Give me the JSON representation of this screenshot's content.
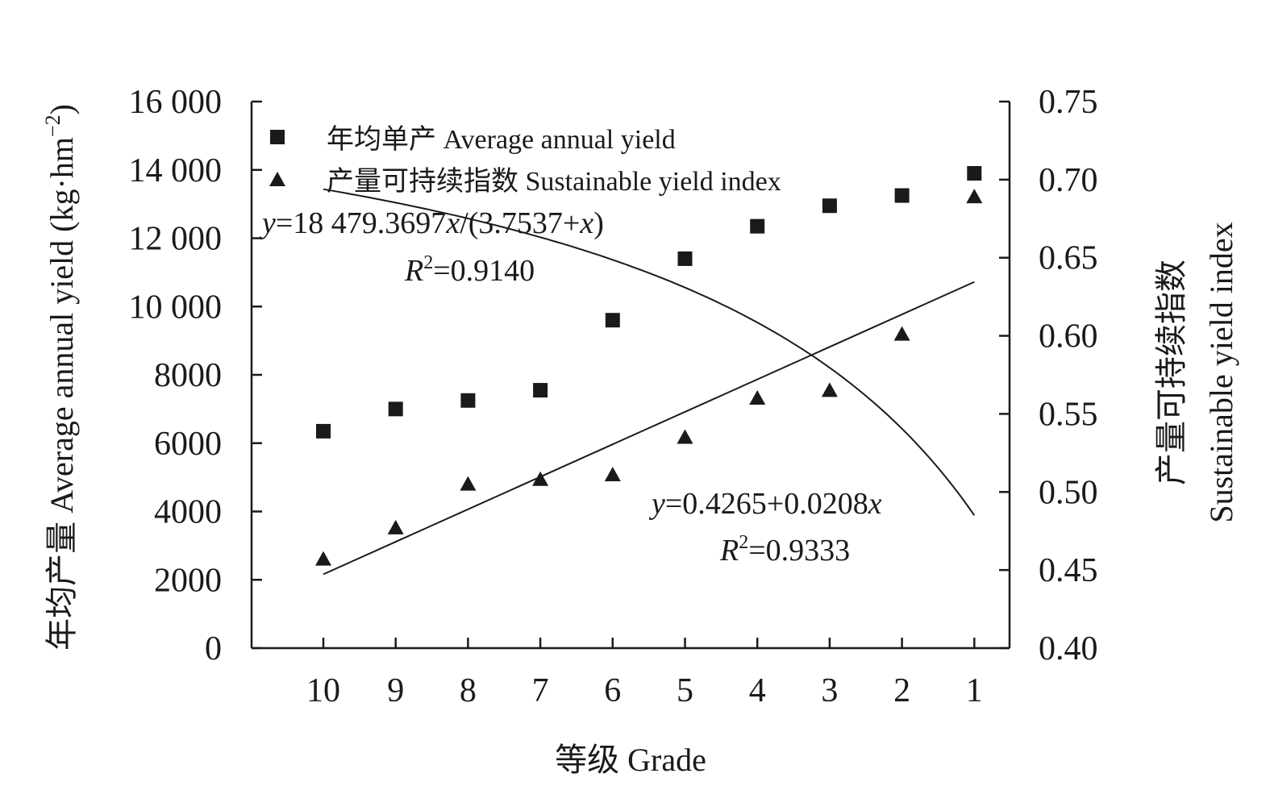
{
  "chart_data": {
    "type": "scatter",
    "x_axis": {
      "label": "等级 Grade",
      "categories": [
        "10",
        "9",
        "8",
        "7",
        "6",
        "5",
        "4",
        "3",
        "2",
        "1"
      ]
    },
    "y_left": {
      "label": "年均产量 Average annual yield (kg·hm⁻²)",
      "ylim": [
        0,
        16000
      ],
      "ticks": [
        0,
        2000,
        4000,
        6000,
        8000,
        10000,
        12000,
        14000,
        16000
      ],
      "tick_labels": [
        "0",
        "2000",
        "4000",
        "6000",
        "8000",
        "10 000",
        "12 000",
        "14 000",
        "16 000"
      ]
    },
    "y_right": {
      "label_cn": "产量可持续指数",
      "label_en": "Sustainable yield index",
      "ylim": [
        0.4,
        0.75
      ],
      "ticks": [
        0.4,
        0.45,
        0.5,
        0.55,
        0.6,
        0.65,
        0.7,
        0.75
      ],
      "tick_labels": [
        "0.40",
        "0.45",
        "0.50",
        "0.55",
        "0.60",
        "0.65",
        "0.70",
        "0.75"
      ]
    },
    "series": [
      {
        "name": "年均单产 Average annual yield",
        "marker": "square",
        "axis": "left",
        "x": [
          10,
          9,
          8,
          7,
          6,
          5,
          4,
          3,
          2,
          1
        ],
        "values": [
          6350,
          7000,
          7250,
          7550,
          9600,
          11400,
          12350,
          12950,
          13250,
          13900
        ]
      },
      {
        "name": "产量可持续指数 Sustainable yield index",
        "marker": "triangle",
        "axis": "right",
        "x": [
          10,
          9,
          8,
          7,
          6,
          5,
          4,
          3,
          2,
          1
        ],
        "values": [
          0.457,
          0.477,
          0.505,
          0.508,
          0.511,
          0.535,
          0.56,
          0.565,
          0.601,
          0.689
        ]
      }
    ],
    "fits": [
      {
        "series": 0,
        "parts": [
          "y",
          "=18 479.3697",
          "x",
          "/(3.7537+",
          "x",
          ")"
        ],
        "r2_parts": [
          "R",
          "2",
          "=0.9140"
        ],
        "a": 18479.3697,
        "b": 3.7537
      },
      {
        "series": 1,
        "parts": [
          "y",
          "=0.4265+0.0208",
          "x"
        ],
        "r2_parts": [
          "R",
          "2",
          "=0.9333"
        ],
        "intercept": 0.4265,
        "slope": 0.0208
      }
    ],
    "legend_position": "top-left",
    "grid": false
  },
  "labels": {
    "left_axis_cn": "年均产量",
    "left_axis_en": "Average annual yield (kg·hm",
    "left_axis_sup": "−2",
    "left_axis_close": ")",
    "right_axis_cn": "产量可持续指数",
    "right_axis_en": "Sustainable yield index",
    "x_axis": "等级 Grade"
  }
}
